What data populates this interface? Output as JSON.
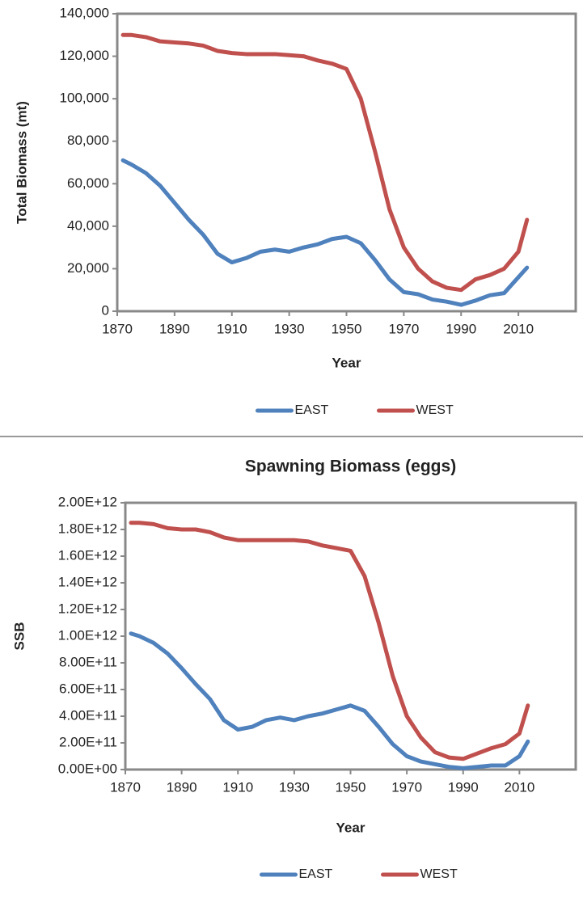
{
  "chart_data": [
    {
      "type": "line",
      "ylabel": "Total Biomass (mt)",
      "xlabel": "Year",
      "x": [
        1872,
        1875,
        1880,
        1885,
        1890,
        1895,
        1900,
        1905,
        1910,
        1915,
        1920,
        1925,
        1930,
        1935,
        1940,
        1945,
        1950,
        1955,
        1960,
        1965,
        1970,
        1975,
        1980,
        1985,
        1990,
        1995,
        2000,
        2005,
        2010,
        2013
      ],
      "series": [
        {
          "name": "EAST",
          "color": "#4f81bd",
          "values": [
            71000,
            69000,
            65000,
            59000,
            51000,
            43000,
            36000,
            27000,
            23000,
            25000,
            28000,
            29000,
            28000,
            30000,
            31500,
            34000,
            35000,
            32000,
            24000,
            15000,
            9000,
            8000,
            5500,
            4500,
            3000,
            5000,
            7500,
            8500,
            16000,
            20500
          ]
        },
        {
          "name": "WEST",
          "color": "#c0504d",
          "values": [
            130000,
            130000,
            129000,
            127000,
            126500,
            126000,
            125000,
            122500,
            121500,
            121000,
            121000,
            121000,
            120500,
            120000,
            118000,
            116500,
            114000,
            100000,
            75000,
            48000,
            30000,
            20000,
            14000,
            11000,
            10000,
            15000,
            17000,
            20000,
            28000,
            43000
          ]
        }
      ],
      "xlim": [
        1870,
        2030
      ],
      "xticks": [
        1870,
        1890,
        1910,
        1930,
        1950,
        1970,
        1990,
        2010
      ],
      "ylim": [
        0,
        140000
      ],
      "yticks": [
        0,
        {
          "value": 20000,
          "label": "20,000"
        },
        {
          "value": 40000,
          "label": "40,000"
        },
        {
          "value": 60000,
          "label": "60,000"
        },
        {
          "value": 80000,
          "label": "80,000"
        },
        {
          "value": 100000,
          "label": "100,000"
        },
        {
          "value": 120000,
          "label": "120,000"
        },
        {
          "value": 140000,
          "label": "140,000"
        }
      ],
      "legend": "bottom"
    },
    {
      "type": "line",
      "title": "Spawning Biomass (eggs)",
      "ylabel": "SSB",
      "xlabel": "Year",
      "x": [
        1872,
        1875,
        1880,
        1885,
        1890,
        1895,
        1900,
        1905,
        1910,
        1915,
        1920,
        1925,
        1930,
        1935,
        1940,
        1945,
        1950,
        1955,
        1960,
        1965,
        1970,
        1975,
        1980,
        1985,
        1990,
        1995,
        2000,
        2005,
        2010,
        2013
      ],
      "series": [
        {
          "name": "EAST",
          "color": "#4f81bd",
          "values": [
            1020000000000.0,
            1000000000000.0,
            950000000000.0,
            870000000000.0,
            760000000000.0,
            640000000000.0,
            530000000000.0,
            370000000000.0,
            300000000000.0,
            320000000000.0,
            370000000000.0,
            390000000000.0,
            370000000000.0,
            400000000000.0,
            420000000000.0,
            450000000000.0,
            480000000000.0,
            440000000000.0,
            320000000000.0,
            190000000000.0,
            100000000000.0,
            60000000000.0,
            40000000000.0,
            20000000000.0,
            10000000000.0,
            20000000000.0,
            30000000000.0,
            30000000000.0,
            100000000000.0,
            210000000000.0
          ]
        },
        {
          "name": "WEST",
          "color": "#c0504d",
          "values": [
            1850000000000.0,
            1850000000000.0,
            1840000000000.0,
            1810000000000.0,
            1800000000000.0,
            1800000000000.0,
            1780000000000.0,
            1740000000000.0,
            1720000000000.0,
            1720000000000.0,
            1720000000000.0,
            1720000000000.0,
            1720000000000.0,
            1710000000000.0,
            1680000000000.0,
            1660000000000.0,
            1640000000000.0,
            1450000000000.0,
            1100000000000.0,
            700000000000.0,
            400000000000.0,
            240000000000.0,
            130000000000.0,
            90000000000.0,
            80000000000.0,
            120000000000.0,
            160000000000.0,
            190000000000.0,
            270000000000.0,
            480000000000.0
          ]
        }
      ],
      "xlim": [
        1870,
        2030
      ],
      "xticks": [
        1870,
        1890,
        1910,
        1930,
        1950,
        1970,
        1990,
        2010
      ],
      "ylim": [
        0,
        2000000000000.0
      ],
      "yticks": [
        {
          "value": 0,
          "label": "0.00E+00"
        },
        {
          "value": 200000000000.0,
          "label": "2.00E+11"
        },
        {
          "value": 400000000000.0,
          "label": "4.00E+11"
        },
        {
          "value": 600000000000.0,
          "label": "6.00E+11"
        },
        {
          "value": 800000000000.0,
          "label": "8.00E+11"
        },
        {
          "value": 1000000000000.0,
          "label": "1.00E+12"
        },
        {
          "value": 1200000000000.0,
          "label": "1.20E+12"
        },
        {
          "value": 1400000000000.0,
          "label": "1.40E+12"
        },
        {
          "value": 1600000000000.0,
          "label": "1.60E+12"
        },
        {
          "value": 1800000000000.0,
          "label": "1.80E+12"
        },
        {
          "value": 2000000000000.0,
          "label": "2.00E+12"
        }
      ],
      "legend": "bottom"
    }
  ]
}
